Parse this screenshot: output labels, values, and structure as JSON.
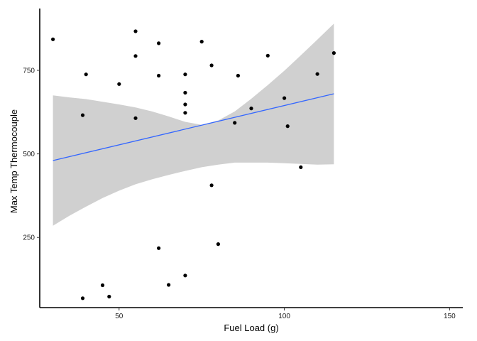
{
  "chart_data": {
    "type": "scatter",
    "title": "",
    "xlabel": "Fuel Load (g)",
    "ylabel": "Max Temp Thermocouple",
    "xlim": [
      26,
      154
    ],
    "ylim": [
      40,
      935
    ],
    "x_ticks": [
      50,
      100,
      150
    ],
    "y_ticks": [
      250,
      500,
      750
    ],
    "grid": false,
    "legend": "none",
    "points": [
      {
        "x": 30,
        "y": 843
      },
      {
        "x": 39,
        "y": 616
      },
      {
        "x": 39,
        "y": 68
      },
      {
        "x": 40,
        "y": 738
      },
      {
        "x": 45,
        "y": 107
      },
      {
        "x": 47,
        "y": 73
      },
      {
        "x": 50,
        "y": 709
      },
      {
        "x": 55,
        "y": 867
      },
      {
        "x": 55,
        "y": 793
      },
      {
        "x": 55,
        "y": 607
      },
      {
        "x": 62,
        "y": 831
      },
      {
        "x": 62,
        "y": 734
      },
      {
        "x": 62,
        "y": 218
      },
      {
        "x": 65,
        "y": 108
      },
      {
        "x": 70,
        "y": 738
      },
      {
        "x": 70,
        "y": 683
      },
      {
        "x": 70,
        "y": 648
      },
      {
        "x": 70,
        "y": 623
      },
      {
        "x": 70,
        "y": 136
      },
      {
        "x": 75,
        "y": 836
      },
      {
        "x": 78,
        "y": 765
      },
      {
        "x": 78,
        "y": 406
      },
      {
        "x": 80,
        "y": 230
      },
      {
        "x": 85,
        "y": 593
      },
      {
        "x": 86,
        "y": 734
      },
      {
        "x": 90,
        "y": 636
      },
      {
        "x": 95,
        "y": 794
      },
      {
        "x": 100,
        "y": 667
      },
      {
        "x": 101,
        "y": 583
      },
      {
        "x": 105,
        "y": 460
      },
      {
        "x": 110,
        "y": 739
      },
      {
        "x": 115,
        "y": 802
      }
    ],
    "trend": {
      "x": [
        30,
        115
      ],
      "y": [
        480,
        680
      ],
      "color": "#3366ff"
    },
    "confidence_band": {
      "x": [
        30,
        35,
        40,
        45,
        50,
        55,
        60,
        65,
        70,
        75,
        80,
        85,
        90,
        95,
        100,
        105,
        110,
        115
      ],
      "lower": [
        285,
        315,
        342,
        368,
        390,
        409,
        424,
        437,
        449,
        460,
        468,
        474,
        474,
        474,
        472,
        470,
        468,
        469
      ],
      "upper": [
        675,
        669,
        664,
        656,
        648,
        639,
        627,
        612,
        596,
        587,
        600,
        627,
        665,
        706,
        749,
        795,
        842,
        890
      ],
      "color": "#d0d0d0"
    },
    "colors": {
      "point": "#000000",
      "axis": "#000000"
    }
  }
}
